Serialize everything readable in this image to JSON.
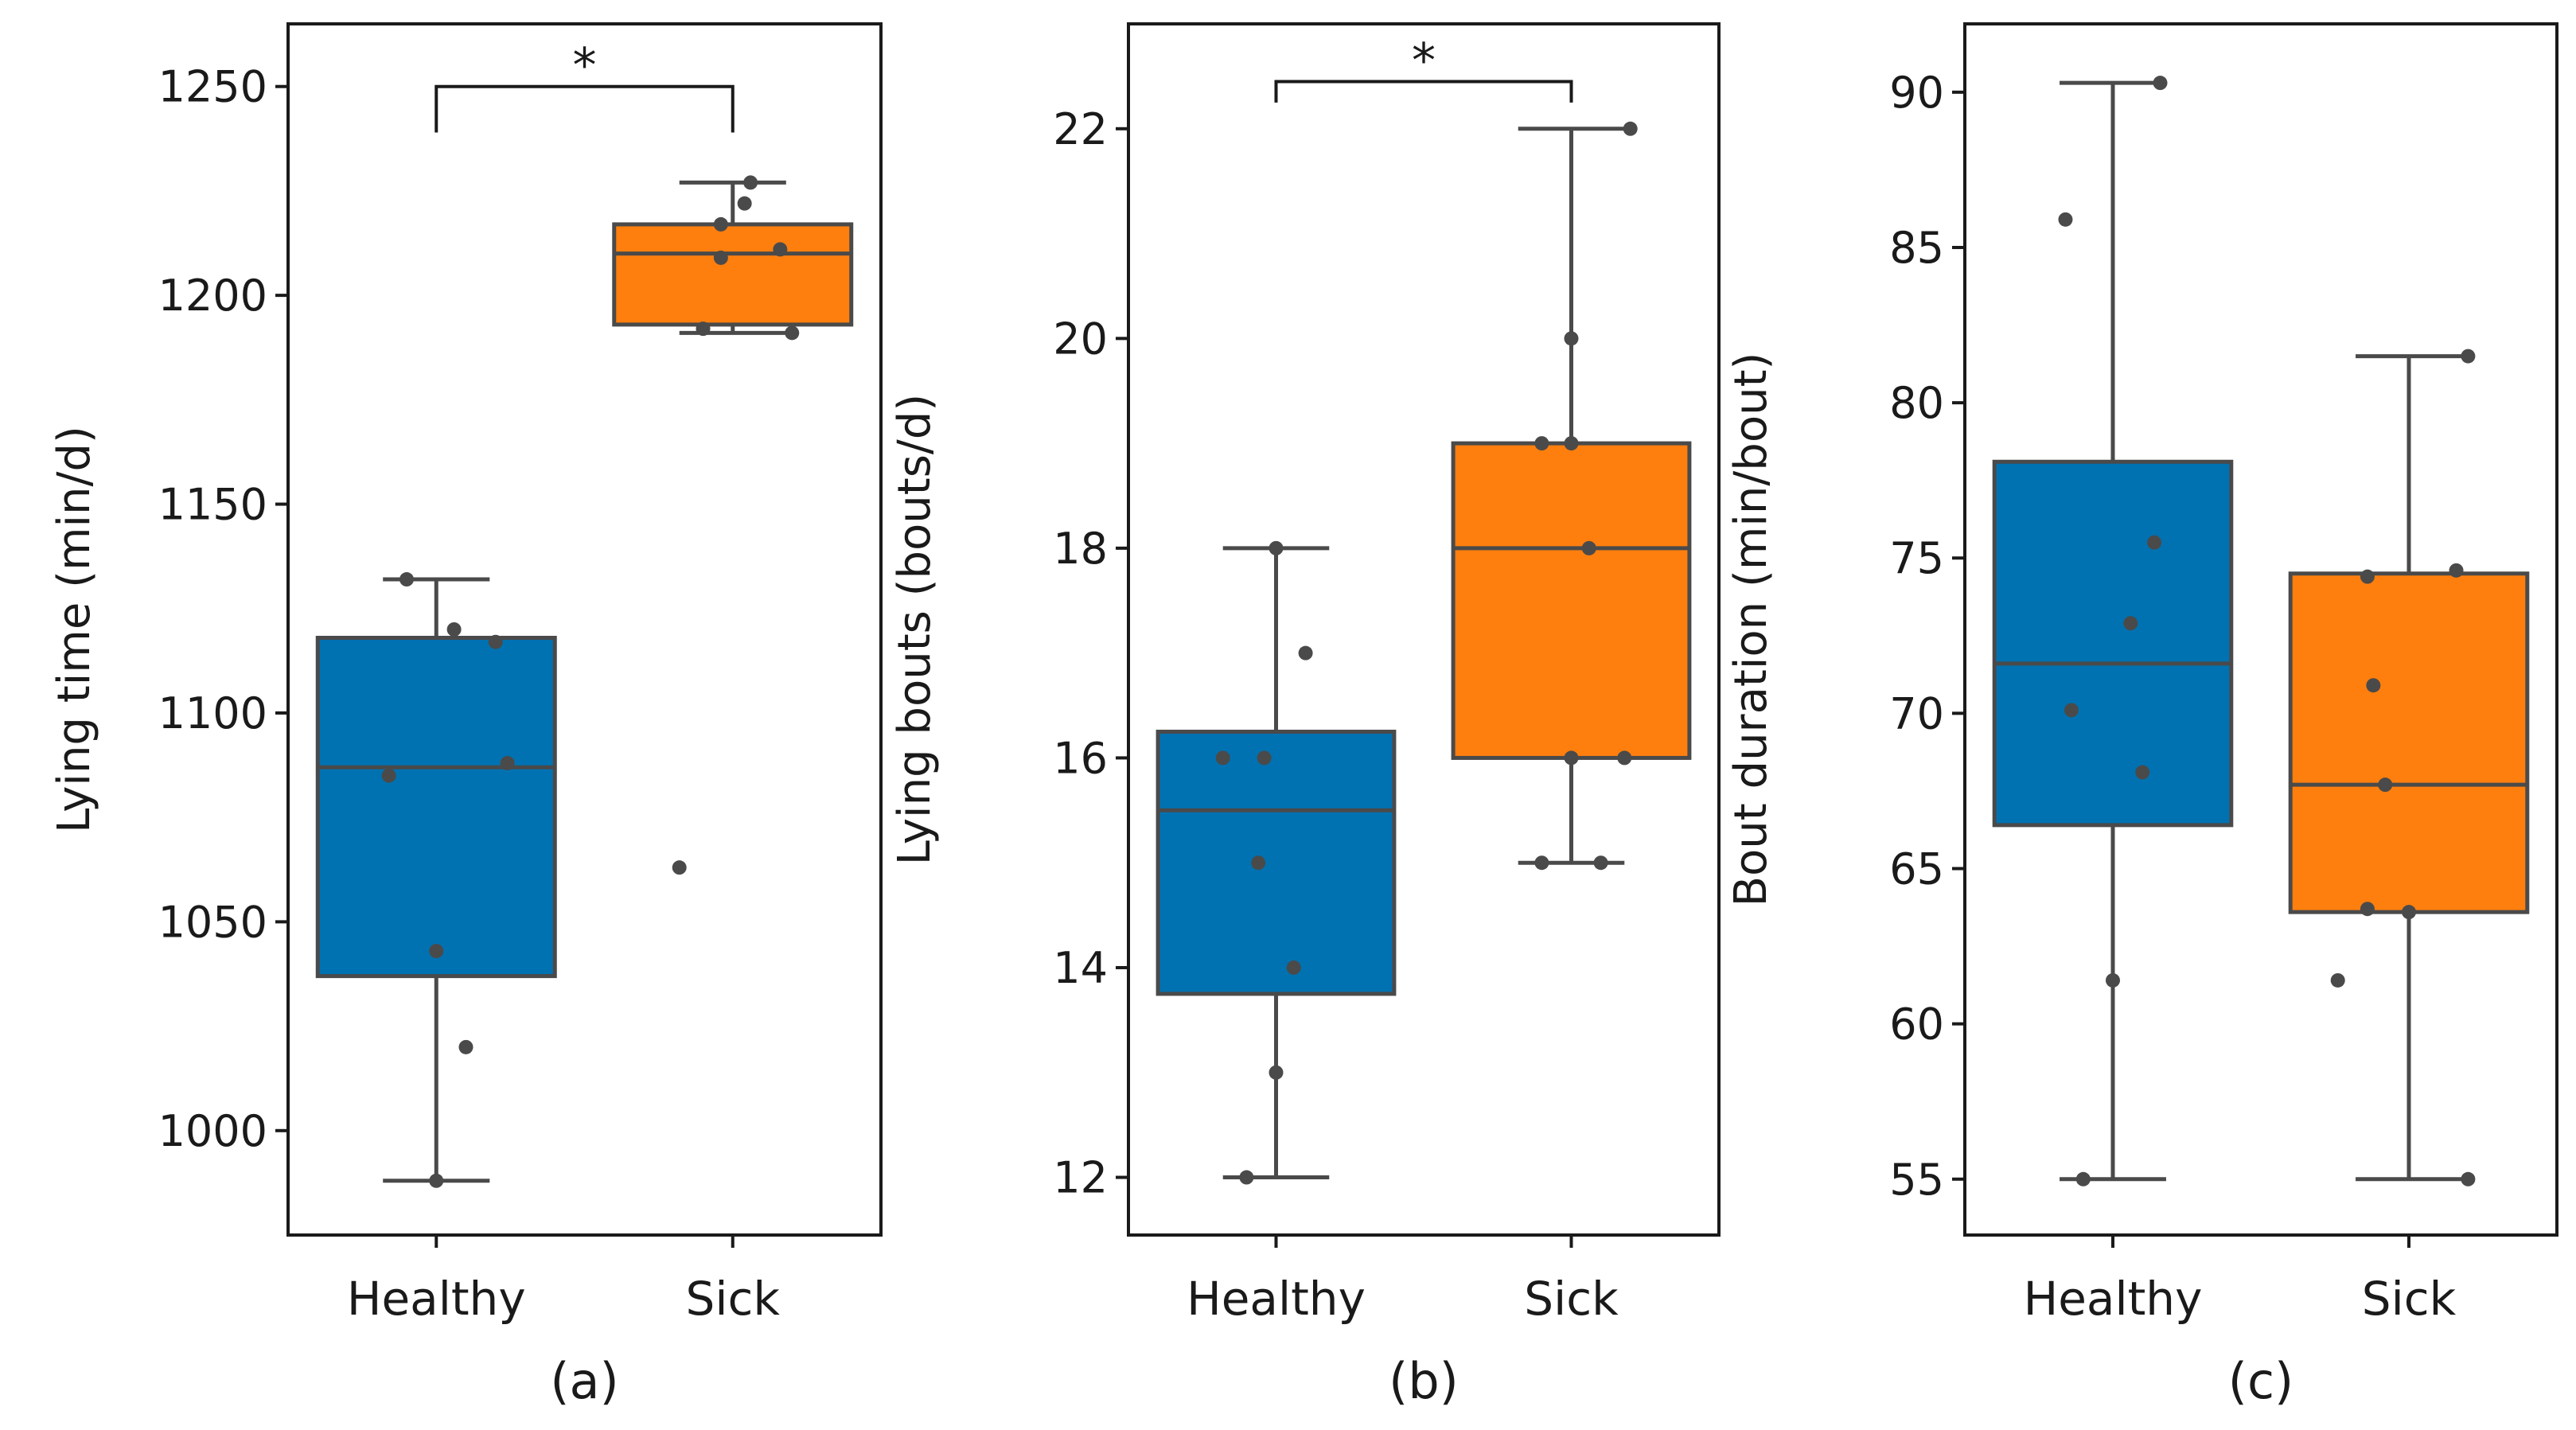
{
  "chart_data": [
    {
      "type": "box",
      "panel_label": "(a)",
      "ylabel": "Lying time (min/d)",
      "ylim": [
        975,
        1265
      ],
      "yticks": [
        1000,
        1050,
        1100,
        1150,
        1200,
        1250
      ],
      "categories": [
        "Healthy",
        "Sick"
      ],
      "boxes": [
        {
          "category": "Healthy",
          "color": "#0072B2",
          "whisker_low": 988,
          "q1": 1037,
          "median": 1087,
          "q3": 1118,
          "whisker_high": 1132,
          "points": [
            [
              -0.05,
              1132
            ],
            [
              0.03,
              1120
            ],
            [
              0.1,
              1117
            ],
            [
              -0.08,
              1085
            ],
            [
              0.12,
              1088
            ],
            [
              0,
              1043
            ],
            [
              0.05,
              1020
            ],
            [
              0,
              988
            ]
          ]
        },
        {
          "category": "Sick",
          "color": "#FF7F0E",
          "whisker_low": 1191,
          "q1": 1193,
          "median": 1210,
          "q3": 1217,
          "whisker_high": 1227,
          "points": [
            [
              0.03,
              1227
            ],
            [
              0.02,
              1222
            ],
            [
              -0.02,
              1217
            ],
            [
              0.08,
              1211
            ],
            [
              -0.02,
              1209
            ],
            [
              -0.05,
              1192
            ],
            [
              0.1,
              1191
            ],
            [
              -0.09,
              1063
            ]
          ]
        }
      ],
      "significance": {
        "label": "*",
        "from": "Healthy",
        "to": "Sick",
        "y_bottom": 1239,
        "y_top": 1250
      }
    },
    {
      "type": "box",
      "panel_label": "(b)",
      "ylabel": "Lying bouts (bouts/d)",
      "ylim": [
        11.45,
        23
      ],
      "yticks": [
        12,
        14,
        16,
        18,
        20,
        22
      ],
      "categories": [
        "Healthy",
        "Sick"
      ],
      "boxes": [
        {
          "category": "Healthy",
          "color": "#0072B2",
          "whisker_low": 12,
          "q1": 13.75,
          "median": 15.5,
          "q3": 16.25,
          "whisker_high": 18,
          "points": [
            [
              0,
              18
            ],
            [
              0.05,
              17
            ],
            [
              -0.09,
              16
            ],
            [
              -0.02,
              16
            ],
            [
              -0.03,
              15
            ],
            [
              0.03,
              14
            ],
            [
              0,
              13
            ],
            [
              -0.05,
              12
            ]
          ]
        },
        {
          "category": "Sick",
          "color": "#FF7F0E",
          "whisker_low": 15,
          "q1": 16,
          "median": 18,
          "q3": 19,
          "whisker_high": 22,
          "points": [
            [
              0.1,
              22
            ],
            [
              0,
              20
            ],
            [
              0,
              19
            ],
            [
              -0.05,
              19
            ],
            [
              0.03,
              18
            ],
            [
              0,
              16
            ],
            [
              0.09,
              16
            ],
            [
              -0.05,
              15
            ],
            [
              0.05,
              15
            ]
          ]
        }
      ],
      "significance": {
        "label": "*",
        "from": "Healthy",
        "to": "Sick",
        "y_bottom": 22.25,
        "y_top": 22.45
      }
    },
    {
      "type": "box",
      "panel_label": "(c)",
      "ylabel": "Bout duration (min/bout)",
      "ylim": [
        53.2,
        92.2
      ],
      "yticks": [
        55,
        60,
        65,
        70,
        75,
        80,
        85,
        90
      ],
      "categories": [
        "Healthy",
        "Sick"
      ],
      "boxes": [
        {
          "category": "Healthy",
          "color": "#0072B2",
          "whisker_low": 55,
          "q1": 66.4,
          "median": 71.6,
          "q3": 78.1,
          "whisker_high": 90.3,
          "points": [
            [
              0.08,
              90.3
            ],
            [
              -0.08,
              85.9
            ],
            [
              0.07,
              75.5
            ],
            [
              0.03,
              72.9
            ],
            [
              -0.07,
              70.1
            ],
            [
              0.05,
              68.1
            ],
            [
              0,
              61.4
            ],
            [
              -0.05,
              55
            ]
          ]
        },
        {
          "category": "Sick",
          "color": "#FF7F0E",
          "whisker_low": 55,
          "q1": 63.6,
          "median": 67.7,
          "q3": 74.5,
          "whisker_high": 81.5,
          "points": [
            [
              0.1,
              81.5
            ],
            [
              -0.07,
              74.4
            ],
            [
              0.08,
              74.6
            ],
            [
              -0.06,
              70.9
            ],
            [
              -0.04,
              67.7
            ],
            [
              -0.07,
              63.7
            ],
            [
              0,
              63.6
            ],
            [
              -0.12,
              61.4
            ],
            [
              0.1,
              55
            ]
          ]
        }
      ]
    }
  ]
}
